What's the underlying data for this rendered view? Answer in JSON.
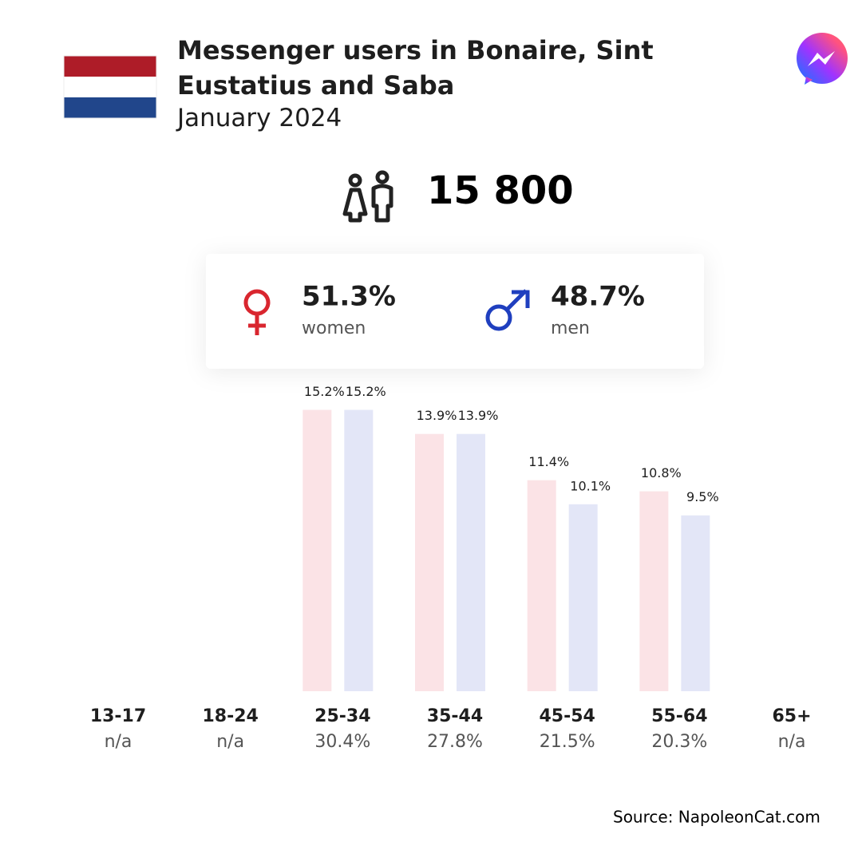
{
  "chart_data": {
    "type": "bar",
    "title": "Messenger users in Bonaire, Sint Eustatius and Saba",
    "subtitle": "January 2024",
    "total": {
      "value": 15800,
      "label": "15 800"
    },
    "gender": [
      {
        "name": "women",
        "value": 51.3,
        "value_label": "51.3%",
        "color": "#d9262f"
      },
      {
        "name": "men",
        "value": 48.7,
        "value_label": "48.7%",
        "color": "#1f3fbf"
      }
    ],
    "categories": [
      "13-17",
      "18-24",
      "25-34",
      "35-44",
      "45-54",
      "55-64",
      "65+"
    ],
    "series": [
      {
        "name": "women",
        "color": "#fbe3e6",
        "values": [
          null,
          null,
          15.2,
          13.9,
          11.4,
          10.8,
          null
        ],
        "value_labels": [
          null,
          null,
          "15.2%",
          "13.9%",
          "11.4%",
          "10.8%",
          null
        ]
      },
      {
        "name": "men",
        "color": "#e3e6f7",
        "values": [
          null,
          null,
          15.2,
          13.9,
          10.1,
          9.5,
          null
        ],
        "value_labels": [
          null,
          null,
          "15.2%",
          "13.9%",
          "10.1%",
          "9.5%",
          null
        ]
      }
    ],
    "totals": {
      "values": [
        null,
        null,
        30.4,
        27.8,
        21.5,
        20.3,
        null
      ],
      "value_labels": [
        "n/a",
        "n/a",
        "30.4%",
        "27.8%",
        "21.5%",
        "20.3%",
        "n/a"
      ]
    },
    "ylim": [
      0,
      16
    ],
    "source": "Source: NapoleonCat.com"
  }
}
